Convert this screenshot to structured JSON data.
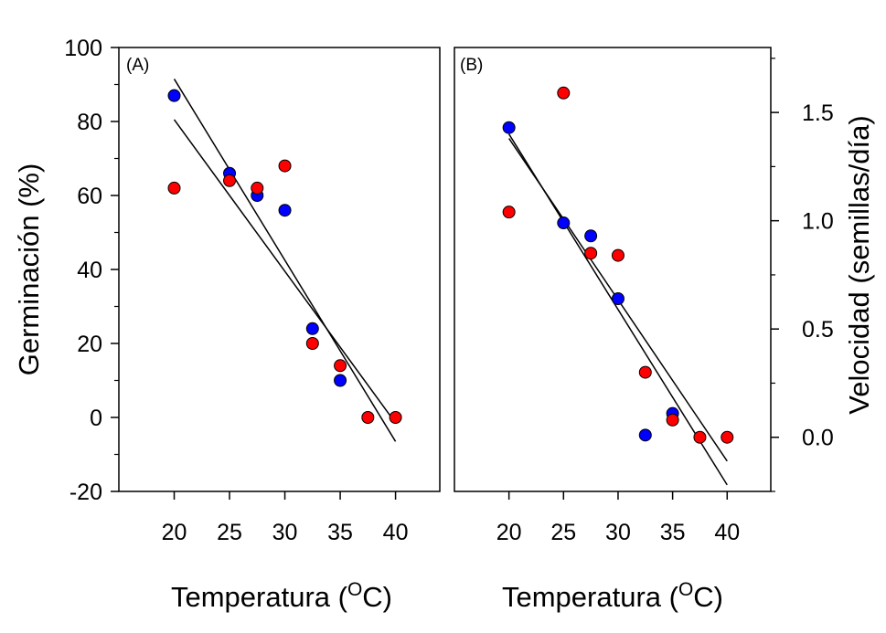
{
  "chart_data": [
    {
      "type": "scatter",
      "panel_label": "(A)",
      "xlabel_main": "Temperatura (",
      "xlabel_sup": "O",
      "xlabel_end": "C)",
      "ylabel": "Germinación (%)",
      "xlim": [
        15,
        44
      ],
      "ylim": [
        -20,
        100
      ],
      "xticks": [
        20,
        25,
        30,
        35,
        40
      ],
      "yticks": [
        -20,
        0,
        20,
        40,
        60,
        80,
        100
      ],
      "yticks_minor": [
        -10,
        10,
        30,
        50,
        70,
        90
      ],
      "series": [
        {
          "name": "blue",
          "color": "#0000ff",
          "x": [
            20,
            25,
            27.5,
            30,
            32.5,
            35
          ],
          "y": [
            87,
            66,
            60,
            56,
            24,
            10
          ]
        },
        {
          "name": "red",
          "color": "#ff0000",
          "x": [
            20,
            25,
            27.5,
            30,
            32.5,
            35,
            37.5,
            40
          ],
          "y": [
            62,
            64,
            62,
            68,
            20,
            14,
            0,
            0
          ]
        }
      ],
      "fit_lines": [
        {
          "x": [
            20,
            40
          ],
          "y": [
            91.5,
            -6.5
          ]
        },
        {
          "x": [
            20,
            40
          ],
          "y": [
            80.5,
            -1.5
          ]
        }
      ]
    },
    {
      "type": "scatter",
      "panel_label": "(B)",
      "xlabel_main": "Temperatura (",
      "xlabel_sup": "O",
      "xlabel_end": "C)",
      "ylabel": "Velocidad (semillas/día)",
      "xlim": [
        15,
        44
      ],
      "ylim": [
        -0.25,
        1.8
      ],
      "xticks": [
        20,
        25,
        30,
        35,
        40
      ],
      "ytick_labels": [
        "0.0",
        "0.5",
        "1.0",
        "1.5"
      ],
      "ytick_values": [
        0,
        0.5,
        1.0,
        1.5
      ],
      "yticks_minor": [
        -0.25,
        0.25,
        0.75,
        1.25,
        1.75
      ],
      "series": [
        {
          "name": "blue",
          "color": "#0000ff",
          "x": [
            20,
            25,
            27.5,
            30,
            32.5,
            35
          ],
          "y": [
            1.43,
            0.99,
            0.93,
            0.64,
            0.01,
            0.11
          ]
        },
        {
          "name": "red",
          "color": "#ff0000",
          "x": [
            20,
            25,
            27.5,
            30,
            32.5,
            35,
            37.5,
            40
          ],
          "y": [
            1.04,
            1.59,
            0.85,
            0.84,
            0.3,
            0.08,
            0.0,
            0.0
          ]
        }
      ],
      "fit_lines": [
        {
          "x": [
            20,
            40
          ],
          "y": [
            1.4,
            -0.22
          ]
        },
        {
          "x": [
            20,
            40
          ],
          "y": [
            1.38,
            -0.11
          ]
        }
      ]
    }
  ]
}
